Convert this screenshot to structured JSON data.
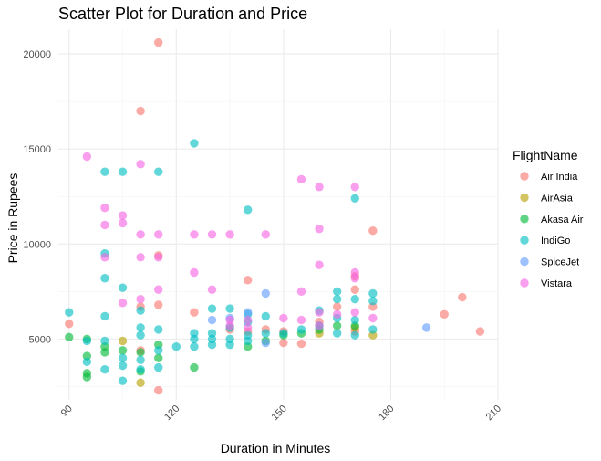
{
  "chart_data": {
    "type": "scatter",
    "title": "Scatter Plot for Duration and Price",
    "xlabel": "Duration in Minutes",
    "ylabel": "Price in Rupees",
    "xlim": [
      87,
      210
    ],
    "ylim": [
      1800,
      21300
    ],
    "x_ticks": [
      90,
      120,
      150,
      180,
      210
    ],
    "y_ticks": [
      5000,
      10000,
      15000,
      20000
    ],
    "x_tick_labels": [
      "90",
      "120",
      "150",
      "180",
      "210"
    ],
    "y_tick_labels": [
      "5000",
      "10000",
      "15000",
      "20000"
    ],
    "x_tick_rotation_deg": 45,
    "grid": true,
    "legend": {
      "title": "FlightName",
      "position": "right"
    },
    "series": [
      {
        "name": "Air India",
        "color": "#F8766D",
        "points": [
          [
            90,
            5800
          ],
          [
            110,
            17000
          ],
          [
            115,
            20600
          ],
          [
            110,
            6700
          ],
          [
            115,
            6800
          ],
          [
            115,
            9400
          ],
          [
            115,
            2300
          ],
          [
            110,
            4400
          ],
          [
            125,
            6400
          ],
          [
            140,
            8100
          ],
          [
            135,
            5500
          ],
          [
            140,
            5400
          ],
          [
            145,
            5500
          ],
          [
            150,
            5400
          ],
          [
            150,
            4800
          ],
          [
            155,
            4750
          ],
          [
            160,
            5900
          ],
          [
            165,
            6700
          ],
          [
            170,
            8300
          ],
          [
            170,
            7600
          ],
          [
            175,
            10700
          ],
          [
            175,
            6700
          ],
          [
            170,
            5400
          ],
          [
            195,
            6300
          ],
          [
            200,
            7200
          ],
          [
            205,
            5400
          ]
        ]
      },
      {
        "name": "AirAsia",
        "color": "#B79F00",
        "points": [
          [
            105,
            4900
          ],
          [
            110,
            2700
          ],
          [
            160,
            5300
          ],
          [
            170,
            5600
          ],
          [
            175,
            5200
          ]
        ]
      },
      {
        "name": "Akasa Air",
        "color": "#00BA38",
        "points": [
          [
            90,
            5100
          ],
          [
            95,
            5000
          ],
          [
            95,
            4100
          ],
          [
            95,
            3200
          ],
          [
            95,
            3000
          ],
          [
            100,
            4600
          ],
          [
            100,
            4300
          ],
          [
            105,
            4400
          ],
          [
            110,
            3300
          ],
          [
            110,
            4300
          ],
          [
            115,
            4700
          ],
          [
            115,
            4000
          ],
          [
            125,
            3500
          ],
          [
            140,
            4600
          ],
          [
            145,
            4900
          ],
          [
            150,
            5200
          ],
          [
            155,
            5300
          ],
          [
            160,
            5500
          ],
          [
            165,
            5700
          ],
          [
            170,
            5700
          ]
        ]
      },
      {
        "name": "IndiGo",
        "color": "#00BFC4",
        "points": [
          [
            90,
            6400
          ],
          [
            95,
            4900
          ],
          [
            95,
            3800
          ],
          [
            100,
            13800
          ],
          [
            105,
            13800
          ],
          [
            115,
            13800
          ],
          [
            100,
            9500
          ],
          [
            100,
            8200
          ],
          [
            105,
            7700
          ],
          [
            100,
            6200
          ],
          [
            100,
            4900
          ],
          [
            100,
            3400
          ],
          [
            105,
            4000
          ],
          [
            105,
            3600
          ],
          [
            105,
            2800
          ],
          [
            110,
            6500
          ],
          [
            110,
            5600
          ],
          [
            110,
            5200
          ],
          [
            110,
            3900
          ],
          [
            110,
            3400
          ],
          [
            115,
            5500
          ],
          [
            115,
            3500
          ],
          [
            115,
            4400
          ],
          [
            120,
            4600
          ],
          [
            125,
            15300
          ],
          [
            125,
            5300
          ],
          [
            125,
            5000
          ],
          [
            125,
            4600
          ],
          [
            130,
            6600
          ],
          [
            130,
            5300
          ],
          [
            130,
            5000
          ],
          [
            130,
            4700
          ],
          [
            135,
            6600
          ],
          [
            135,
            5600
          ],
          [
            135,
            5000
          ],
          [
            135,
            4700
          ],
          [
            140,
            11800
          ],
          [
            140,
            6300
          ],
          [
            140,
            5900
          ],
          [
            140,
            5200
          ],
          [
            140,
            4900
          ],
          [
            145,
            6200
          ],
          [
            145,
            5300
          ],
          [
            150,
            5300
          ],
          [
            155,
            5500
          ],
          [
            160,
            6500
          ],
          [
            160,
            5700
          ],
          [
            165,
            7500
          ],
          [
            165,
            7100
          ],
          [
            165,
            6100
          ],
          [
            165,
            5300
          ],
          [
            170,
            12400
          ],
          [
            170,
            7100
          ],
          [
            170,
            6000
          ],
          [
            170,
            5200
          ],
          [
            175,
            7400
          ],
          [
            175,
            7000
          ],
          [
            175,
            5500
          ]
        ]
      },
      {
        "name": "SpiceJet",
        "color": "#619CFF",
        "points": [
          [
            130,
            6000
          ],
          [
            135,
            6100
          ],
          [
            140,
            6400
          ],
          [
            145,
            7400
          ],
          [
            145,
            4800
          ],
          [
            190,
            5600
          ]
        ]
      },
      {
        "name": "Vistara",
        "color": "#F564E3",
        "points": [
          [
            95,
            14600
          ],
          [
            100,
            11900
          ],
          [
            100,
            11000
          ],
          [
            100,
            9300
          ],
          [
            105,
            11500
          ],
          [
            105,
            11100
          ],
          [
            105,
            6900
          ],
          [
            110,
            14200
          ],
          [
            110,
            10500
          ],
          [
            110,
            9300
          ],
          [
            110,
            7100
          ],
          [
            115,
            10500
          ],
          [
            115,
            9300
          ],
          [
            115,
            7600
          ],
          [
            125,
            10500
          ],
          [
            125,
            8500
          ],
          [
            130,
            10500
          ],
          [
            130,
            7600
          ],
          [
            135,
            10500
          ],
          [
            135,
            6000
          ],
          [
            135,
            5700
          ],
          [
            140,
            6000
          ],
          [
            140,
            5600
          ],
          [
            145,
            10500
          ],
          [
            150,
            6100
          ],
          [
            155,
            13400
          ],
          [
            155,
            7500
          ],
          [
            155,
            6000
          ],
          [
            160,
            13000
          ],
          [
            160,
            10800
          ],
          [
            160,
            8900
          ],
          [
            160,
            6400
          ],
          [
            160,
            5700
          ],
          [
            165,
            6300
          ],
          [
            170,
            13000
          ],
          [
            170,
            8500
          ],
          [
            170,
            8200
          ],
          [
            170,
            6400
          ],
          [
            175,
            6100
          ]
        ]
      }
    ]
  }
}
